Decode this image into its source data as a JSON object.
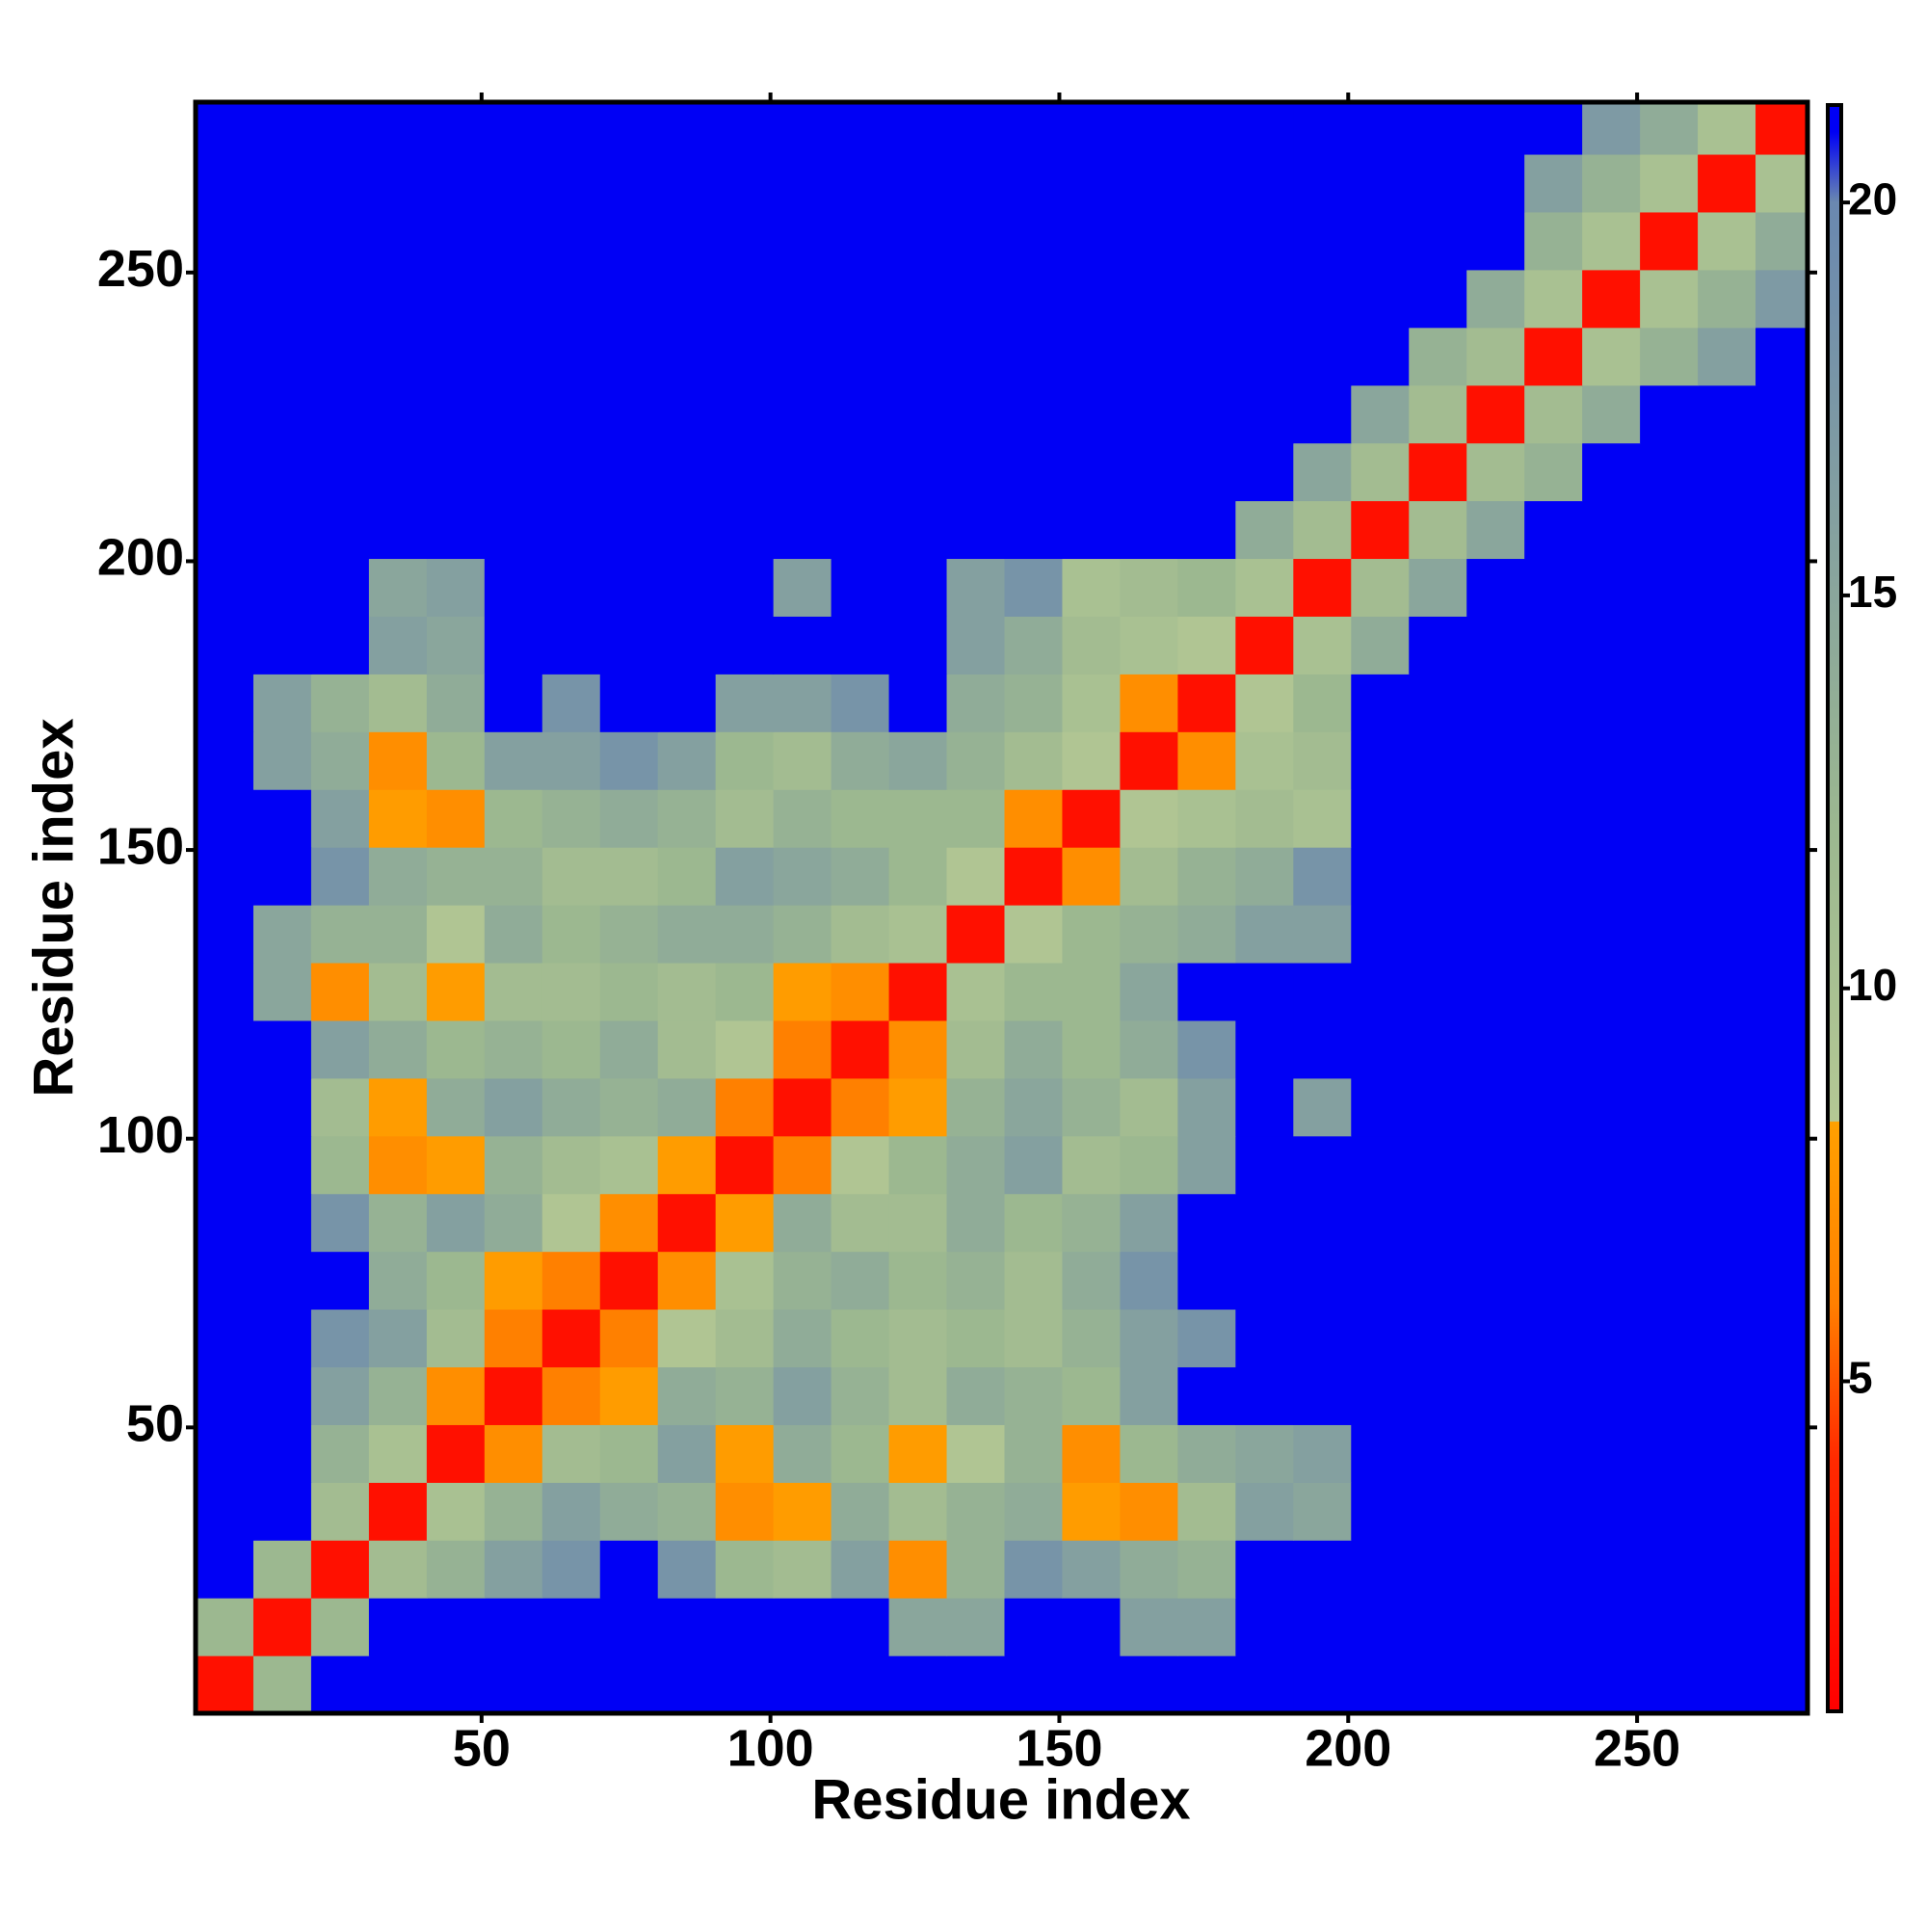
{
  "chart_data": {
    "type": "heatmap",
    "xlabel": "Residue index",
    "ylabel": "Residue index",
    "x": [
      5.5,
      15.5,
      25.5,
      35.5,
      45.5,
      55.5,
      65.5,
      75.5,
      85.5,
      95.5,
      105.5,
      115.5,
      125.5,
      135.5,
      145.5,
      155.5,
      165.5,
      175.5,
      185.5,
      195.5,
      205.5,
      215.5,
      225.5,
      235.5,
      245.5,
      255.5,
      265.5,
      275.5
    ],
    "y": [
      5.5,
      15.5,
      25.5,
      35.5,
      45.5,
      55.5,
      65.5,
      75.5,
      85.5,
      95.5,
      105.5,
      115.5,
      125.5,
      135.5,
      145.5,
      155.5,
      165.5,
      175.5,
      185.5,
      195.5,
      205.5,
      215.5,
      225.5,
      235.5,
      245.5,
      255.5,
      265.5,
      275.5
    ],
    "z": [
      [
        2,
        12,
        21,
        21,
        21,
        21,
        21,
        21,
        21,
        21,
        21,
        21,
        21,
        21,
        21,
        21,
        21,
        21,
        21,
        21,
        21,
        21,
        21,
        21,
        21,
        21,
        21,
        21
      ],
      [
        12,
        2,
        12,
        21,
        21,
        21,
        21,
        21,
        21,
        21,
        21,
        21,
        15,
        15,
        21,
        21,
        16,
        16,
        21,
        21,
        21,
        21,
        21,
        21,
        21,
        21,
        21,
        21
      ],
      [
        21,
        12,
        2,
        11,
        13,
        16,
        18,
        21,
        18,
        12,
        11,
        16,
        7,
        13,
        18,
        16,
        14,
        13,
        21,
        21,
        21,
        21,
        21,
        21,
        21,
        21,
        21,
        21
      ],
      [
        21,
        21,
        11,
        2,
        10,
        13,
        16,
        14,
        13,
        7,
        8,
        14,
        11,
        13,
        14,
        8,
        7,
        11,
        16,
        15,
        21,
        21,
        21,
        21,
        21,
        21,
        21,
        21
      ],
      [
        21,
        21,
        13,
        10,
        2,
        7,
        11,
        12,
        16,
        8,
        14,
        12,
        8,
        9,
        13,
        7,
        12,
        14,
        15,
        16,
        21,
        21,
        21,
        21,
        21,
        21,
        21,
        21
      ],
      [
        21,
        21,
        16,
        13,
        7,
        2,
        6,
        8,
        14,
        13,
        16,
        13,
        11,
        14,
        13,
        12,
        16,
        21,
        21,
        21,
        21,
        21,
        21,
        21,
        21,
        21,
        21,
        21
      ],
      [
        21,
        21,
        18,
        16,
        11,
        6,
        2,
        6,
        9,
        11,
        14,
        12,
        11,
        12,
        11,
        13,
        16,
        18,
        21,
        21,
        21,
        21,
        21,
        21,
        21,
        21,
        21,
        21
      ],
      [
        21,
        21,
        21,
        14,
        12,
        8,
        6,
        2,
        7,
        10,
        13,
        14,
        12,
        13,
        11,
        14,
        18,
        21,
        21,
        21,
        21,
        21,
        21,
        21,
        21,
        21,
        21,
        21
      ],
      [
        21,
        21,
        18,
        13,
        16,
        14,
        9,
        7,
        2,
        8,
        14,
        11,
        11,
        14,
        12,
        13,
        16,
        21,
        21,
        21,
        21,
        21,
        21,
        21,
        21,
        21,
        21,
        21
      ],
      [
        21,
        21,
        12,
        7,
        8,
        13,
        11,
        10,
        8,
        2,
        6,
        9,
        12,
        14,
        16,
        11,
        12,
        16,
        21,
        21,
        21,
        21,
        21,
        21,
        21,
        21,
        21,
        21
      ],
      [
        21,
        21,
        11,
        8,
        14,
        16,
        14,
        13,
        14,
        6,
        2,
        6,
        8,
        13,
        15,
        13,
        11,
        16,
        21,
        16,
        21,
        21,
        21,
        21,
        21,
        21,
        21,
        21
      ],
      [
        21,
        21,
        16,
        14,
        12,
        13,
        12,
        14,
        11,
        9,
        6,
        2,
        7,
        11,
        14,
        12,
        14,
        18,
        21,
        21,
        21,
        21,
        21,
        21,
        21,
        21,
        21,
        21
      ],
      [
        21,
        15,
        7,
        11,
        8,
        11,
        11,
        12,
        11,
        12,
        8,
        7,
        2,
        10,
        12,
        12,
        15,
        21,
        21,
        21,
        21,
        21,
        21,
        21,
        21,
        21,
        21,
        21
      ],
      [
        21,
        15,
        13,
        13,
        9,
        14,
        12,
        13,
        14,
        14,
        13,
        11,
        10,
        2,
        9,
        12,
        13,
        14,
        16,
        16,
        21,
        21,
        21,
        21,
        21,
        21,
        21,
        21
      ],
      [
        21,
        21,
        18,
        14,
        13,
        13,
        11,
        11,
        12,
        16,
        15,
        14,
        12,
        9,
        2,
        7,
        11,
        13,
        14,
        18,
        21,
        21,
        21,
        21,
        21,
        21,
        21,
        21
      ],
      [
        21,
        21,
        16,
        8,
        7,
        12,
        13,
        14,
        13,
        11,
        13,
        12,
        12,
        12,
        7,
        2,
        9,
        10,
        11,
        10,
        21,
        21,
        21,
        21,
        21,
        21,
        21,
        21
      ],
      [
        21,
        16,
        14,
        7,
        12,
        16,
        16,
        18,
        16,
        12,
        11,
        14,
        15,
        13,
        11,
        9,
        2,
        7,
        10,
        11,
        21,
        21,
        21,
        21,
        21,
        21,
        21,
        21
      ],
      [
        21,
        16,
        13,
        11,
        14,
        21,
        18,
        21,
        21,
        16,
        16,
        18,
        21,
        14,
        13,
        10,
        7,
        2,
        9,
        12,
        21,
        21,
        21,
        21,
        21,
        21,
        21,
        21
      ],
      [
        21,
        21,
        21,
        16,
        15,
        21,
        21,
        21,
        21,
        21,
        21,
        21,
        21,
        16,
        14,
        11,
        10,
        9,
        2,
        10,
        14,
        21,
        21,
        21,
        21,
        21,
        21,
        21
      ],
      [
        21,
        21,
        21,
        15,
        16,
        21,
        21,
        21,
        21,
        21,
        16,
        21,
        21,
        16,
        18,
        10,
        11,
        12,
        10,
        2,
        11,
        15,
        21,
        21,
        21,
        21,
        21,
        21
      ],
      [
        21,
        21,
        21,
        21,
        21,
        21,
        21,
        21,
        21,
        21,
        21,
        21,
        21,
        21,
        21,
        21,
        21,
        21,
        14,
        11,
        2,
        11,
        15,
        21,
        21,
        21,
        21,
        21
      ],
      [
        21,
        21,
        21,
        21,
        21,
        21,
        21,
        21,
        21,
        21,
        21,
        21,
        21,
        21,
        21,
        21,
        21,
        21,
        21,
        15,
        11,
        2,
        11,
        13,
        21,
        21,
        21,
        21
      ],
      [
        21,
        21,
        21,
        21,
        21,
        21,
        21,
        21,
        21,
        21,
        21,
        21,
        21,
        21,
        21,
        21,
        21,
        21,
        21,
        21,
        15,
        11,
        2,
        11,
        14,
        21,
        21,
        21
      ],
      [
        21,
        21,
        21,
        21,
        21,
        21,
        21,
        21,
        21,
        21,
        21,
        21,
        21,
        21,
        21,
        21,
        21,
        21,
        21,
        21,
        21,
        13,
        11,
        2,
        10,
        13,
        16,
        21
      ],
      [
        21,
        21,
        21,
        21,
        21,
        21,
        21,
        21,
        21,
        21,
        21,
        21,
        21,
        21,
        21,
        21,
        21,
        21,
        21,
        21,
        21,
        21,
        14,
        10,
        2,
        10,
        13,
        17
      ],
      [
        21,
        21,
        21,
        21,
        21,
        21,
        21,
        21,
        21,
        21,
        21,
        21,
        21,
        21,
        21,
        21,
        21,
        21,
        21,
        21,
        21,
        21,
        21,
        13,
        10,
        2,
        10,
        14
      ],
      [
        21,
        21,
        21,
        21,
        21,
        21,
        21,
        21,
        21,
        21,
        21,
        21,
        21,
        21,
        21,
        21,
        21,
        21,
        21,
        21,
        21,
        21,
        21,
        16,
        13,
        10,
        2,
        10
      ],
      [
        21,
        21,
        21,
        21,
        21,
        21,
        21,
        21,
        21,
        21,
        21,
        21,
        21,
        21,
        21,
        21,
        21,
        21,
        21,
        21,
        21,
        21,
        21,
        21,
        17,
        14,
        10,
        2
      ]
    ],
    "xlim": [
      0.5,
      279.5
    ],
    "ylim": [
      0.5,
      279.5
    ],
    "xticks": [
      50,
      100,
      150,
      200,
      250
    ],
    "yticks": [
      50,
      100,
      150,
      200,
      250
    ],
    "zlim": [
      0.8,
      21.24
    ],
    "zticks": [
      5,
      10,
      15,
      20
    ],
    "colorscale": [
      [
        0.8,
        "#ff0000"
      ],
      [
        4,
        "#ff2a00"
      ],
      [
        6,
        "#ff8000"
      ],
      [
        8.3,
        "#ffa000"
      ],
      [
        8.31,
        "#b4c894"
      ],
      [
        12,
        "#9cb890"
      ],
      [
        16,
        "#84a0a0"
      ],
      [
        20,
        "#6a88b0"
      ],
      [
        20.9,
        "#0000f5"
      ],
      [
        21.24,
        "#0000f5"
      ]
    ]
  }
}
